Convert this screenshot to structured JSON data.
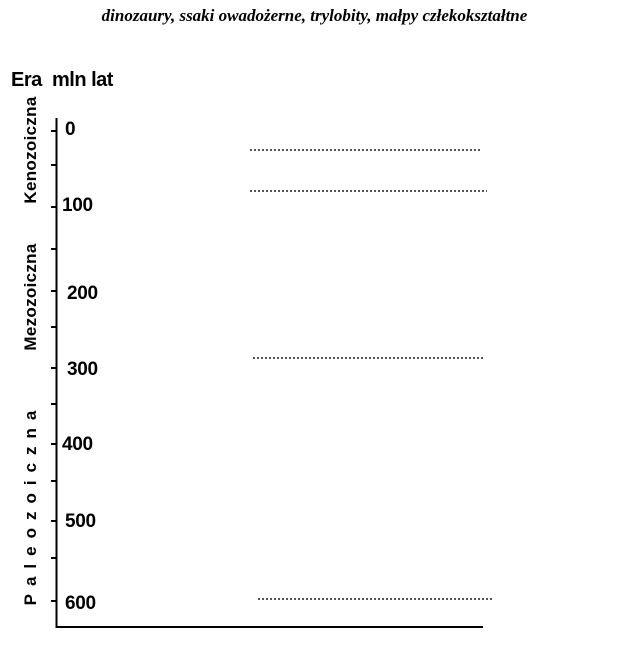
{
  "header": {
    "text": "dinozaury, ssaki owadożerne, trylobity, małpy człekokształtne"
  },
  "columns": {
    "era": "Era",
    "mln_lat": "mln lat"
  },
  "eras": [
    {
      "label": "Kenozoiczna"
    },
    {
      "label": "Mezozoiczna"
    },
    {
      "label": "Paleozoiczna"
    }
  ],
  "axis": {
    "ticks": [
      "0",
      "100",
      "200",
      "300",
      "400",
      "500",
      "600"
    ]
  },
  "blank_lines": 4
}
